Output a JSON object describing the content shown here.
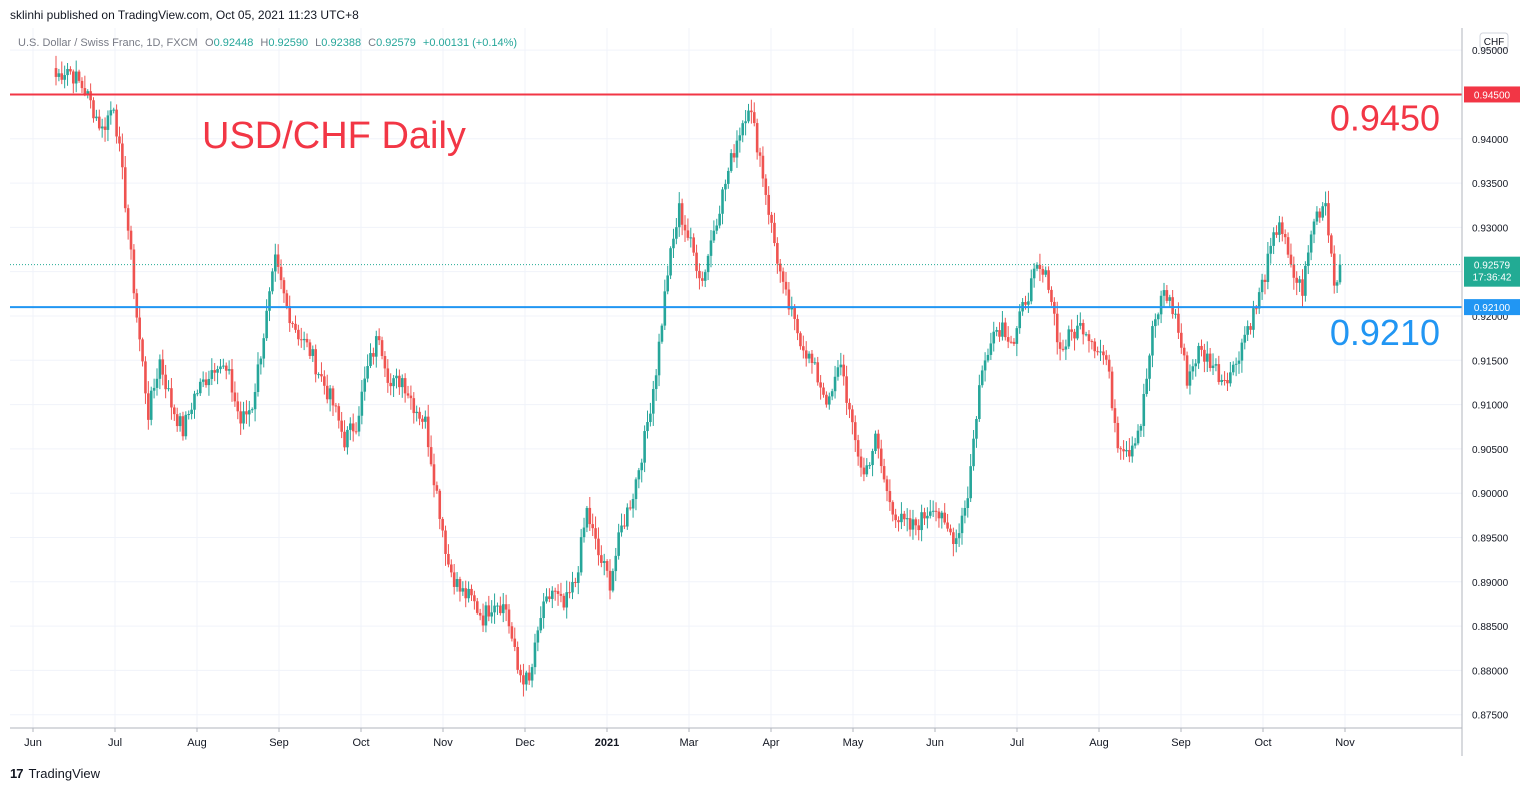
{
  "publisher": "sklinhi published on TradingView.com, Oct 05, 2021 11:23 UTC+8",
  "brand": "TradingView",
  "brand_mark": "17",
  "currency_badge": "CHF",
  "colors": {
    "bull": "#26a69a",
    "bear": "#ef5350",
    "resistance": "#f23645",
    "support": "#2196f3",
    "price_tag": "#22ab94"
  },
  "chart_data": {
    "type": "candlestick",
    "title": "USD/CHF Daily",
    "symbol_line": "U.S. Dollar / Swiss Franc, 1D, FXCM",
    "ohlc": {
      "O_label": "O",
      "O": "0.92448",
      "H_label": "H",
      "H": "0.92590",
      "L_label": "L",
      "L": "0.92388",
      "C_label": "C",
      "C": "0.92579",
      "change": "+0.00131 (+0.14%)"
    },
    "ylim": [
      0.8735,
      0.9525
    ],
    "y_ticks": [
      "0.95000",
      "0.94500",
      "0.94000",
      "0.93500",
      "0.93000",
      "0.92500",
      "0.92000",
      "0.91500",
      "0.91000",
      "0.90500",
      "0.90000",
      "0.89500",
      "0.89000",
      "0.88500",
      "0.88000",
      "0.87500"
    ],
    "x_ticks": [
      "Jun",
      "Jul",
      "Aug",
      "Sep",
      "Oct",
      "Nov",
      "Dec",
      "2021",
      "Mar",
      "Apr",
      "May",
      "Jun",
      "Jul",
      "Aug",
      "Sep",
      "Oct",
      "Nov"
    ],
    "levels": [
      {
        "value": 0.945,
        "tag": "0.94500",
        "label": "0.9450",
        "color": "resistance"
      },
      {
        "value": 0.921,
        "tag": "0.92100",
        "label": "0.9210",
        "color": "support"
      }
    ],
    "last_price": {
      "value": 0.92579,
      "label": "0.92579",
      "countdown": "17:36:42"
    },
    "anchors": [
      [
        0,
        0.947
      ],
      [
        4,
        0.948
      ],
      [
        10,
        0.9455
      ],
      [
        16,
        0.941
      ],
      [
        20,
        0.944
      ],
      [
        24,
        0.933
      ],
      [
        28,
        0.92
      ],
      [
        32,
        0.909
      ],
      [
        36,
        0.915
      ],
      [
        40,
        0.91
      ],
      [
        44,
        0.907
      ],
      [
        48,
        0.911
      ],
      [
        52,
        0.913
      ],
      [
        56,
        0.915
      ],
      [
        60,
        0.913
      ],
      [
        64,
        0.908
      ],
      [
        68,
        0.91
      ],
      [
        72,
        0.918
      ],
      [
        76,
        0.926
      ],
      [
        80,
        0.921
      ],
      [
        84,
        0.918
      ],
      [
        88,
        0.916
      ],
      [
        92,
        0.913
      ],
      [
        96,
        0.91
      ],
      [
        100,
        0.906
      ],
      [
        104,
        0.908
      ],
      [
        108,
        0.914
      ],
      [
        112,
        0.918
      ],
      [
        116,
        0.912
      ],
      [
        120,
        0.913
      ],
      [
        124,
        0.91
      ],
      [
        128,
        0.908
      ],
      [
        132,
        0.9
      ],
      [
        136,
        0.892
      ],
      [
        140,
        0.889
      ],
      [
        144,
        0.888
      ],
      [
        148,
        0.886
      ],
      [
        152,
        0.888
      ],
      [
        156,
        0.887
      ],
      [
        160,
        0.88
      ],
      [
        164,
        0.8785
      ],
      [
        168,
        0.886
      ],
      [
        172,
        0.889
      ],
      [
        176,
        0.887
      ],
      [
        180,
        0.89
      ],
      [
        184,
        0.898
      ],
      [
        188,
        0.893
      ],
      [
        192,
        0.89
      ],
      [
        196,
        0.896
      ],
      [
        200,
        0.9
      ],
      [
        204,
        0.906
      ],
      [
        208,
        0.914
      ],
      [
        212,
        0.925
      ],
      [
        216,
        0.932
      ],
      [
        220,
        0.928
      ],
      [
        224,
        0.924
      ],
      [
        228,
        0.93
      ],
      [
        232,
        0.935
      ],
      [
        236,
        0.94
      ],
      [
        240,
        0.944
      ],
      [
        244,
        0.938
      ],
      [
        248,
        0.93
      ],
      [
        252,
        0.923
      ],
      [
        256,
        0.919
      ],
      [
        260,
        0.916
      ],
      [
        264,
        0.913
      ],
      [
        268,
        0.91
      ],
      [
        272,
        0.915
      ],
      [
        276,
        0.907
      ],
      [
        280,
        0.902
      ],
      [
        284,
        0.906
      ],
      [
        288,
        0.9
      ],
      [
        292,
        0.897
      ],
      [
        296,
        0.896
      ],
      [
        300,
        0.897
      ],
      [
        304,
        0.899
      ],
      [
        308,
        0.896
      ],
      [
        312,
        0.895
      ],
      [
        316,
        0.9
      ],
      [
        320,
        0.912
      ],
      [
        324,
        0.918
      ],
      [
        328,
        0.919
      ],
      [
        332,
        0.917
      ],
      [
        336,
        0.922
      ],
      [
        340,
        0.925
      ],
      [
        344,
        0.924
      ],
      [
        348,
        0.916
      ],
      [
        352,
        0.918
      ],
      [
        356,
        0.919
      ],
      [
        360,
        0.917
      ],
      [
        364,
        0.915
      ],
      [
        368,
        0.906
      ],
      [
        372,
        0.905
      ],
      [
        376,
        0.908
      ],
      [
        380,
        0.918
      ],
      [
        384,
        0.923
      ],
      [
        388,
        0.92
      ],
      [
        392,
        0.913
      ],
      [
        396,
        0.916
      ],
      [
        400,
        0.915
      ],
      [
        404,
        0.913
      ],
      [
        408,
        0.914
      ],
      [
        412,
        0.918
      ],
      [
        416,
        0.921
      ],
      [
        420,
        0.926
      ],
      [
        424,
        0.931
      ],
      [
        428,
        0.925
      ],
      [
        432,
        0.923
      ],
      [
        436,
        0.931
      ],
      [
        440,
        0.933
      ],
      [
        443,
        0.924
      ],
      [
        445,
        0.92579
      ]
    ]
  }
}
